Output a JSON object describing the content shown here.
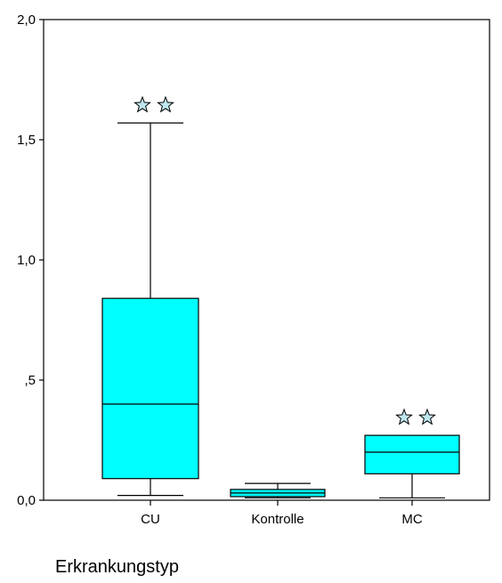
{
  "chart_data": {
    "type": "box",
    "xlabel": "Erkrankungstyp",
    "ylabel": "",
    "ylim": [
      0,
      2.0
    ],
    "yticks": [
      {
        "value": 0.0,
        "label": "0,0"
      },
      {
        "value": 0.5,
        "label": ",5"
      },
      {
        "value": 1.0,
        "label": "1,0"
      },
      {
        "value": 1.5,
        "label": "1,5"
      },
      {
        "value": 2.0,
        "label": "2,0"
      }
    ],
    "categories": [
      "CU",
      "Kontrolle",
      "MC"
    ],
    "boxes": [
      {
        "category": "CU",
        "whisker_low": 0.02,
        "q1": 0.09,
        "median": 0.4,
        "q3": 0.84,
        "whisker_high": 1.57,
        "extreme_markers": 2
      },
      {
        "category": "Kontrolle",
        "whisker_low": 0.01,
        "q1": 0.015,
        "median": 0.03,
        "q3": 0.045,
        "whisker_high": 0.07,
        "extreme_markers": 0
      },
      {
        "category": "MC",
        "whisker_low": 0.01,
        "q1": 0.11,
        "median": 0.2,
        "q3": 0.27,
        "whisker_high": 0.27,
        "extreme_markers": 2
      }
    ],
    "box_color": "#00FFFF",
    "grid": false,
    "legend": "none"
  }
}
